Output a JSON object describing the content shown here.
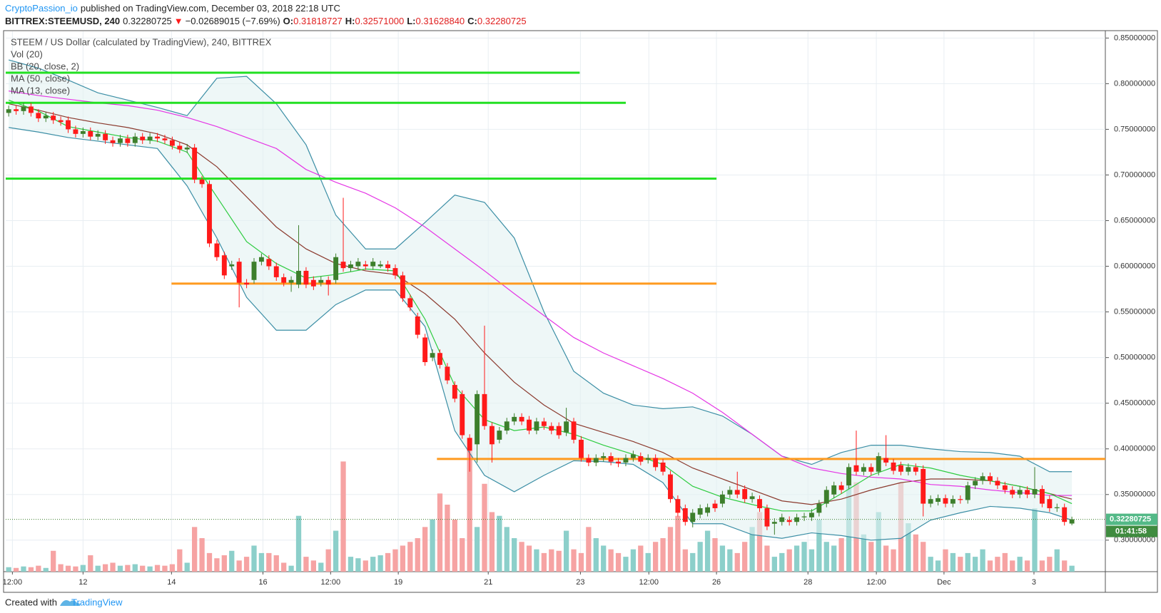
{
  "header": {
    "author": "CryptoPassion_io",
    "published": "published on TradingView.com, December 03, 2018 22:18 UTC",
    "symbol": "BITTREX:STEEMUSD, 240",
    "last": "0.32280725",
    "change_arrow": "▼",
    "change": "−0.02689015 (−7.69%)",
    "ohlc": [
      {
        "label": "O:",
        "value": "0.31818727"
      },
      {
        "label": "H:",
        "value": "0.32571000"
      },
      {
        "label": "L:",
        "value": "0.31628840"
      },
      {
        "label": "C:",
        "value": "0.32280725"
      }
    ]
  },
  "footer": {
    "created": "Created with",
    "brand": "TradingView"
  },
  "chart_data": {
    "type": "candlestick",
    "title": "STEEM / US Dollar (calculated by TradingView), 240, BITTREX",
    "up_color": "#3d7f2c",
    "down_color": "#ff1a1a",
    "candles": {
      "open": [
        0.768,
        0.772,
        0.77,
        0.775,
        0.768,
        0.762,
        0.765,
        0.76,
        0.76,
        0.75,
        0.745,
        0.748,
        0.742,
        0.745,
        0.738,
        0.735,
        0.74,
        0.735,
        0.742,
        0.738,
        0.742,
        0.74,
        0.738,
        0.732,
        0.728,
        0.73,
        0.695,
        0.69,
        0.625,
        0.612,
        0.6,
        0.605,
        0.582,
        0.585,
        0.605,
        0.608,
        0.6,
        0.588,
        0.582,
        0.58,
        0.595,
        0.585,
        0.582,
        0.585,
        0.585,
        0.605,
        0.598,
        0.6,
        0.602,
        0.6,
        0.6,
        0.602,
        0.598,
        0.59,
        0.565,
        0.545,
        0.522,
        0.5,
        0.505,
        0.49,
        0.47,
        0.46,
        0.412,
        0.405,
        0.46,
        0.425,
        0.41,
        0.42,
        0.43,
        0.435,
        0.432,
        0.42,
        0.43,
        0.425,
        0.425,
        0.418,
        0.43,
        0.41,
        0.39,
        0.385,
        0.39,
        0.392,
        0.386,
        0.385,
        0.39,
        0.392,
        0.388,
        0.39,
        0.385,
        0.372,
        0.345,
        0.335,
        0.32,
        0.328,
        0.33,
        0.34,
        0.34,
        0.35,
        0.355,
        0.356,
        0.345,
        0.345,
        0.335,
        0.318,
        0.32,
        0.322,
        0.32,
        0.325,
        0.325,
        0.33,
        0.34,
        0.35,
        0.36,
        0.36,
        0.382,
        0.375,
        0.38,
        0.375,
        0.39,
        0.385,
        0.382,
        0.375,
        0.38,
        0.378,
        0.34,
        0.342,
        0.346,
        0.34,
        0.345,
        0.344,
        0.36,
        0.365,
        0.37,
        0.365,
        0.36,
        0.355,
        0.35,
        0.355,
        0.35,
        0.356,
        0.345,
        0.335,
        0.336,
        0.31818727
      ],
      "high": [
        0.776,
        0.776,
        0.779,
        0.779,
        0.772,
        0.769,
        0.769,
        0.764,
        0.764,
        0.754,
        0.752,
        0.752,
        0.749,
        0.749,
        0.742,
        0.744,
        0.744,
        0.746,
        0.746,
        0.746,
        0.746,
        0.744,
        0.742,
        0.736,
        0.734,
        0.734,
        0.699,
        0.694,
        0.629,
        0.616,
        0.606,
        0.609,
        0.586,
        0.609,
        0.614,
        0.612,
        0.604,
        0.592,
        0.589,
        0.645,
        0.599,
        0.589,
        0.589,
        0.589,
        0.614,
        0.675,
        0.606,
        0.609,
        0.606,
        0.609,
        0.606,
        0.606,
        0.602,
        0.594,
        0.569,
        0.549,
        0.526,
        0.509,
        0.509,
        0.494,
        0.474,
        0.464,
        0.416,
        0.464,
        0.535,
        0.429,
        0.424,
        0.434,
        0.439,
        0.439,
        0.436,
        0.434,
        0.434,
        0.429,
        0.429,
        0.445,
        0.434,
        0.414,
        0.394,
        0.394,
        0.396,
        0.396,
        0.39,
        0.394,
        0.398,
        0.396,
        0.394,
        0.394,
        0.389,
        0.376,
        0.349,
        0.339,
        0.334,
        0.339,
        0.34,
        0.344,
        0.354,
        0.359,
        0.375,
        0.36,
        0.352,
        0.349,
        0.339,
        0.324,
        0.329,
        0.326,
        0.329,
        0.33,
        0.334,
        0.344,
        0.359,
        0.364,
        0.364,
        0.384,
        0.42,
        0.384,
        0.384,
        0.396,
        0.415,
        0.389,
        0.386,
        0.384,
        0.384,
        0.382,
        0.349,
        0.35,
        0.35,
        0.349,
        0.349,
        0.364,
        0.369,
        0.374,
        0.374,
        0.369,
        0.364,
        0.359,
        0.359,
        0.359,
        0.38,
        0.36,
        0.349,
        0.34,
        0.34,
        0.32571
      ],
      "low": [
        0.764,
        0.766,
        0.766,
        0.764,
        0.758,
        0.758,
        0.756,
        0.754,
        0.746,
        0.741,
        0.741,
        0.738,
        0.738,
        0.734,
        0.731,
        0.731,
        0.731,
        0.731,
        0.734,
        0.734,
        0.736,
        0.734,
        0.728,
        0.724,
        0.724,
        0.691,
        0.686,
        0.621,
        0.606,
        0.586,
        0.596,
        0.555,
        0.576,
        0.581,
        0.601,
        0.596,
        0.584,
        0.578,
        0.572,
        0.576,
        0.576,
        0.574,
        0.578,
        0.568,
        0.581,
        0.594,
        0.594,
        0.596,
        0.596,
        0.596,
        0.598,
        0.594,
        0.586,
        0.561,
        0.551,
        0.521,
        0.491,
        0.496,
        0.488,
        0.471,
        0.451,
        0.411,
        0.375,
        0.385,
        0.421,
        0.385,
        0.406,
        0.416,
        0.426,
        0.426,
        0.416,
        0.416,
        0.421,
        0.416,
        0.411,
        0.414,
        0.406,
        0.386,
        0.381,
        0.381,
        0.386,
        0.382,
        0.38,
        0.381,
        0.386,
        0.382,
        0.384,
        0.376,
        0.371,
        0.341,
        0.326,
        0.316,
        0.314,
        0.324,
        0.326,
        0.331,
        0.336,
        0.346,
        0.346,
        0.341,
        0.341,
        0.331,
        0.311,
        0.306,
        0.316,
        0.316,
        0.316,
        0.321,
        0.321,
        0.326,
        0.336,
        0.346,
        0.351,
        0.356,
        0.371,
        0.371,
        0.371,
        0.371,
        0.381,
        0.372,
        0.371,
        0.371,
        0.371,
        0.326,
        0.336,
        0.338,
        0.336,
        0.336,
        0.34,
        0.34,
        0.356,
        0.361,
        0.361,
        0.356,
        0.351,
        0.346,
        0.346,
        0.346,
        0.346,
        0.336,
        0.331,
        0.331,
        0.316,
        0.3162884
      ],
      "close": [
        0.772,
        0.77,
        0.775,
        0.768,
        0.762,
        0.765,
        0.76,
        0.758,
        0.75,
        0.745,
        0.748,
        0.742,
        0.745,
        0.738,
        0.735,
        0.74,
        0.735,
        0.742,
        0.738,
        0.742,
        0.74,
        0.738,
        0.732,
        0.728,
        0.73,
        0.695,
        0.69,
        0.625,
        0.61,
        0.59,
        0.602,
        0.582,
        0.58,
        0.605,
        0.61,
        0.6,
        0.588,
        0.582,
        0.585,
        0.595,
        0.58,
        0.578,
        0.585,
        0.58,
        0.61,
        0.598,
        0.602,
        0.605,
        0.6,
        0.605,
        0.602,
        0.598,
        0.59,
        0.565,
        0.555,
        0.525,
        0.495,
        0.505,
        0.492,
        0.475,
        0.455,
        0.415,
        0.398,
        0.46,
        0.425,
        0.405,
        0.42,
        0.43,
        0.435,
        0.43,
        0.42,
        0.43,
        0.425,
        0.42,
        0.415,
        0.43,
        0.41,
        0.39,
        0.385,
        0.39,
        0.392,
        0.386,
        0.384,
        0.39,
        0.394,
        0.386,
        0.39,
        0.38,
        0.375,
        0.345,
        0.33,
        0.32,
        0.33,
        0.335,
        0.336,
        0.335,
        0.35,
        0.355,
        0.35,
        0.345,
        0.348,
        0.335,
        0.315,
        0.32,
        0.325,
        0.32,
        0.325,
        0.326,
        0.33,
        0.34,
        0.355,
        0.36,
        0.355,
        0.38,
        0.375,
        0.38,
        0.375,
        0.392,
        0.385,
        0.376,
        0.375,
        0.38,
        0.375,
        0.34,
        0.345,
        0.346,
        0.34,
        0.345,
        0.344,
        0.36,
        0.365,
        0.37,
        0.365,
        0.36,
        0.355,
        0.35,
        0.355,
        0.35,
        0.356,
        0.34,
        0.335,
        0.336,
        0.32,
        0.32280725
      ]
    },
    "volume_name": "Vol (20)",
    "volume_up_color": "#8ccfca",
    "volume_down_color": "#f6a3a3",
    "volume": [
      6,
      5,
      7,
      6,
      8,
      5,
      28,
      10,
      8,
      7,
      9,
      22,
      8,
      10,
      12,
      8,
      9,
      10,
      8,
      7,
      9,
      8,
      10,
      30,
      12,
      60,
      45,
      25,
      18,
      22,
      28,
      15,
      20,
      35,
      25,
      25,
      22,
      12,
      8,
      75,
      20,
      15,
      12,
      30,
      55,
      148,
      20,
      18,
      15,
      20,
      22,
      25,
      30,
      35,
      40,
      45,
      60,
      70,
      105,
      90,
      70,
      45,
      180,
      60,
      118,
      80,
      75,
      60,
      45,
      40,
      35,
      30,
      25,
      30,
      28,
      55,
      30,
      25,
      60,
      45,
      35,
      30,
      25,
      20,
      30,
      35,
      25,
      40,
      45,
      60,
      75,
      30,
      25,
      40,
      55,
      45,
      35,
      30,
      25,
      40,
      60,
      80,
      35,
      20,
      25,
      30,
      35,
      40,
      30,
      70,
      40,
      35,
      45,
      130,
      120,
      50,
      40,
      80,
      35,
      30,
      120,
      65,
      50,
      40,
      20,
      15,
      30,
      25,
      20,
      25,
      20,
      30,
      15,
      20,
      25,
      15,
      20,
      15,
      85,
      15,
      20,
      30,
      15,
      8
    ],
    "indicator_x": [
      0,
      4,
      8,
      12,
      16,
      20,
      24,
      28,
      32,
      36,
      40,
      44,
      48,
      52,
      56,
      60,
      64,
      68,
      72,
      76,
      80,
      84,
      88,
      92,
      96,
      100,
      104,
      108,
      112,
      116,
      120,
      124,
      128,
      132,
      136,
      140,
      143
    ],
    "indicators": [
      {
        "name": "BB (20, close, 2)",
        "color": "#3b8ea5",
        "basis_color": "#8b3a2e",
        "fill": "#e3f1f1",
        "upper": [
          0.826,
          0.817,
          0.804,
          0.79,
          0.782,
          0.774,
          0.765,
          0.806,
          0.808,
          0.778,
          0.733,
          0.656,
          0.619,
          0.619,
          0.648,
          0.678,
          0.67,
          0.631,
          0.55,
          0.485,
          0.461,
          0.448,
          0.444,
          0.446,
          0.436,
          0.416,
          0.392,
          0.383,
          0.396,
          0.404,
          0.404,
          0.4,
          0.397,
          0.396,
          0.392,
          0.375,
          0.375
        ],
        "basis": [
          0.778,
          0.771,
          0.763,
          0.757,
          0.752,
          0.745,
          0.733,
          0.709,
          0.676,
          0.643,
          0.619,
          0.603,
          0.595,
          0.591,
          0.57,
          0.542,
          0.505,
          0.473,
          0.448,
          0.428,
          0.418,
          0.408,
          0.396,
          0.379,
          0.367,
          0.355,
          0.343,
          0.339,
          0.345,
          0.355,
          0.363,
          0.367,
          0.367,
          0.365,
          0.359,
          0.351,
          0.345
        ],
        "lower": [
          0.752,
          0.747,
          0.741,
          0.737,
          0.733,
          0.729,
          0.688,
          0.631,
          0.566,
          0.53,
          0.53,
          0.558,
          0.574,
          0.574,
          0.534,
          0.42,
          0.371,
          0.353,
          0.371,
          0.387,
          0.386,
          0.383,
          0.363,
          0.318,
          0.318,
          0.306,
          0.302,
          0.308,
          0.305,
          0.3,
          0.302,
          0.322,
          0.33,
          0.337,
          0.335,
          0.33,
          0.322
        ]
      },
      {
        "name": "MA (50, close)",
        "color": "#e535e5",
        "values": [
          0.792,
          0.787,
          0.783,
          0.779,
          0.776,
          0.771,
          0.763,
          0.753,
          0.741,
          0.729,
          0.706,
          0.692,
          0.68,
          0.664,
          0.643,
          0.619,
          0.595,
          0.57,
          0.546,
          0.522,
          0.505,
          0.491,
          0.477,
          0.461,
          0.44,
          0.416,
          0.392,
          0.379,
          0.373,
          0.369,
          0.367,
          0.361,
          0.359,
          0.355,
          0.352,
          0.349,
          0.349
        ]
      },
      {
        "name": "MA (13, close)",
        "color": "#2ecc40",
        "values": [
          0.782,
          0.77,
          0.753,
          0.747,
          0.741,
          0.737,
          0.725,
          0.676,
          0.627,
          0.603,
          0.587,
          0.591,
          0.597,
          0.595,
          0.542,
          0.469,
          0.432,
          0.42,
          0.424,
          0.416,
          0.404,
          0.394,
          0.383,
          0.359,
          0.347,
          0.339,
          0.332,
          0.332,
          0.351,
          0.371,
          0.383,
          0.379,
          0.371,
          0.365,
          0.359,
          0.351,
          0.34
        ]
      }
    ],
    "levels": [
      {
        "value": 0.812,
        "from": -0.4,
        "to": 76.8,
        "color": "#22e022"
      },
      {
        "value": 0.779,
        "from": -0.4,
        "to": 83,
        "color": "#22e022"
      },
      {
        "value": 0.696,
        "from": -0.4,
        "to": 95.2,
        "color": "#22e022"
      },
      {
        "value": 0.581,
        "from": 21.9,
        "to": 95.2,
        "color": "#ff9a1f"
      },
      {
        "value": 0.389,
        "from": 57.6,
        "to": 147.5,
        "color": "#ff9a1f"
      }
    ],
    "last_price": {
      "value": 0.32280725,
      "label": "0.32280725"
    },
    "countdown": "01:41:58",
    "xlim": [
      -0.4,
      147.5
    ],
    "ylim": [
      0.2655,
      0.8573
    ],
    "xticks": [
      {
        "value": 0.5,
        "label": "12:00"
      },
      {
        "value": 10,
        "label": "12"
      },
      {
        "value": 21.9,
        "label": "14"
      },
      {
        "value": 34.2,
        "label": "16"
      },
      {
        "value": 43.3,
        "label": "12:00"
      },
      {
        "value": 52.4,
        "label": "19"
      },
      {
        "value": 64.5,
        "label": "21"
      },
      {
        "value": 76.9,
        "label": "23"
      },
      {
        "value": 86.1,
        "label": "12:00"
      },
      {
        "value": 95.2,
        "label": "26"
      },
      {
        "value": 107.5,
        "label": "28"
      },
      {
        "value": 116.7,
        "label": "12:00"
      },
      {
        "value": 125.8,
        "label": "Dec"
      },
      {
        "value": 137.9,
        "label": "3"
      }
    ],
    "yticks": [
      {
        "value": 0.3,
        "label": "0.30000000"
      },
      {
        "value": 0.35,
        "label": "0.35000000"
      },
      {
        "value": 0.4,
        "label": "0.40000000"
      },
      {
        "value": 0.45,
        "label": "0.45000000"
      },
      {
        "value": 0.5,
        "label": "0.50000000"
      },
      {
        "value": 0.55,
        "label": "0.55000000"
      },
      {
        "value": 0.6,
        "label": "0.60000000"
      },
      {
        "value": 0.65,
        "label": "0.65000000"
      },
      {
        "value": 0.7,
        "label": "0.70000000"
      },
      {
        "value": 0.75,
        "label": "0.75000000"
      },
      {
        "value": 0.8,
        "label": "0.80000000"
      },
      {
        "value": 0.85,
        "label": "0.85000000"
      }
    ],
    "grid": true
  }
}
